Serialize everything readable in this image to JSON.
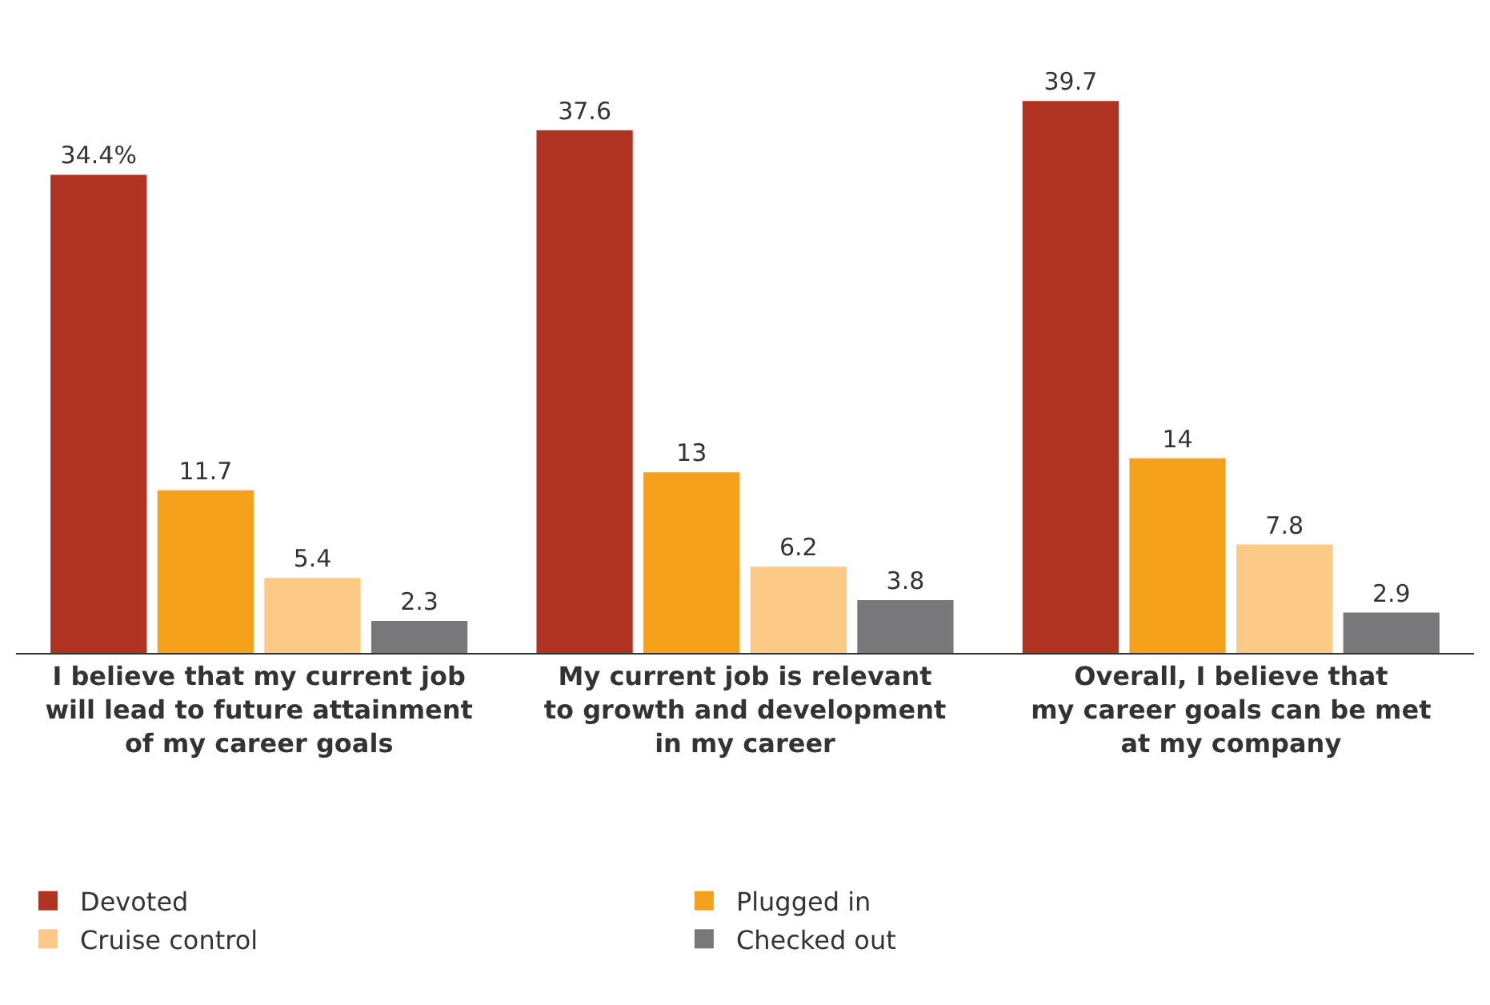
{
  "chart_data": {
    "type": "bar",
    "categories": [
      "I believe that my current job\nwill lead to future attainment\nof my career goals",
      "My current job is relevant\nto growth and development\nin my career",
      "Overall, I believe that\nmy career goals can be met\nat my company"
    ],
    "series": [
      {
        "name": "Devoted",
        "color": "#b03220",
        "values": [
          34.4,
          37.6,
          39.7
        ],
        "value_labels": [
          "34.4%",
          "37.6",
          "39.7"
        ]
      },
      {
        "name": "Plugged in",
        "color": "#f5a11c",
        "values": [
          11.7,
          13,
          14
        ],
        "value_labels": [
          "11.7",
          "13",
          "14"
        ]
      },
      {
        "name": "Cruise control",
        "color": "#fcc986",
        "values": [
          5.4,
          6.2,
          7.8
        ],
        "value_labels": [
          "5.4",
          "6.2",
          "7.8"
        ]
      },
      {
        "name": "Checked out",
        "color": "#78787a",
        "values": [
          2.3,
          3.8,
          2.9
        ],
        "value_labels": [
          "2.3",
          "3.8",
          "2.9"
        ]
      }
    ],
    "legend": "bottom left"
  }
}
